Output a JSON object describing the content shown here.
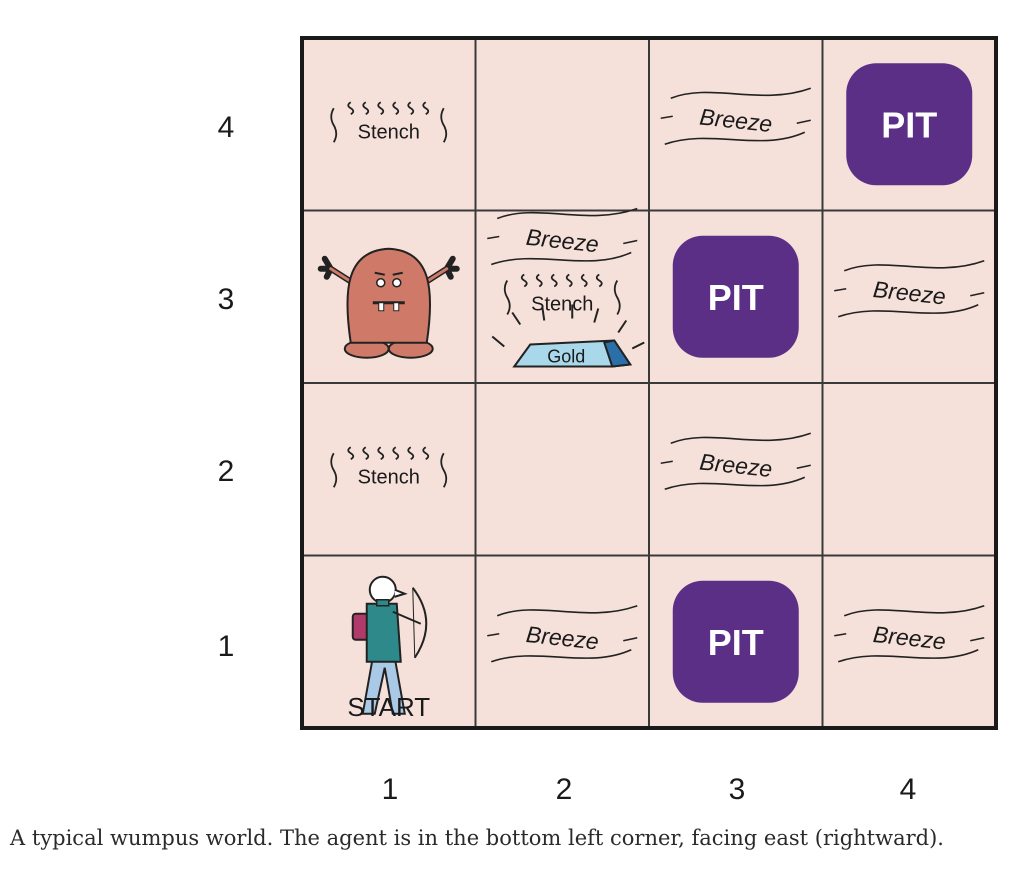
{
  "grid": {
    "rows": [
      "1",
      "2",
      "3",
      "4"
    ],
    "cols": [
      "1",
      "2",
      "3",
      "4"
    ]
  },
  "percepts": {
    "stench": "Stench",
    "breeze": "Breeze",
    "pit": "PIT",
    "gold": "Gold",
    "start": "START"
  },
  "cells": [
    {
      "col": 1,
      "row": 4,
      "items": [
        "stench"
      ]
    },
    {
      "col": 2,
      "row": 4,
      "items": []
    },
    {
      "col": 3,
      "row": 4,
      "items": [
        "breeze"
      ]
    },
    {
      "col": 4,
      "row": 4,
      "items": [
        "pit"
      ]
    },
    {
      "col": 1,
      "row": 3,
      "items": [
        "wumpus"
      ]
    },
    {
      "col": 2,
      "row": 3,
      "items": [
        "breeze",
        "stench",
        "gold"
      ]
    },
    {
      "col": 3,
      "row": 3,
      "items": [
        "pit"
      ]
    },
    {
      "col": 4,
      "row": 3,
      "items": [
        "breeze"
      ]
    },
    {
      "col": 1,
      "row": 2,
      "items": [
        "stench"
      ]
    },
    {
      "col": 2,
      "row": 2,
      "items": []
    },
    {
      "col": 3,
      "row": 2,
      "items": [
        "breeze"
      ]
    },
    {
      "col": 4,
      "row": 2,
      "items": []
    },
    {
      "col": 1,
      "row": 1,
      "items": [
        "agent",
        "start"
      ]
    },
    {
      "col": 2,
      "row": 1,
      "items": [
        "breeze"
      ]
    },
    {
      "col": 3,
      "row": 1,
      "items": [
        "pit"
      ]
    },
    {
      "col": 4,
      "row": 1,
      "items": [
        "breeze"
      ]
    }
  ],
  "colors": {
    "cell": "#f5e0da",
    "pit": "#5c2f86",
    "wumpus": "#cf7a68",
    "gold": "#a9d8ea",
    "agent_body": "#2e8a8a",
    "agent_legs": "#a9c9e6",
    "agent_pack": "#b03a6a"
  },
  "icons": {
    "wumpus": "wumpus-monster-icon",
    "agent": "agent-archer-icon",
    "gold": "gold-bar-icon"
  },
  "caption": "A typical wumpus world. The agent is in the bottom left corner, facing east (rightward)."
}
